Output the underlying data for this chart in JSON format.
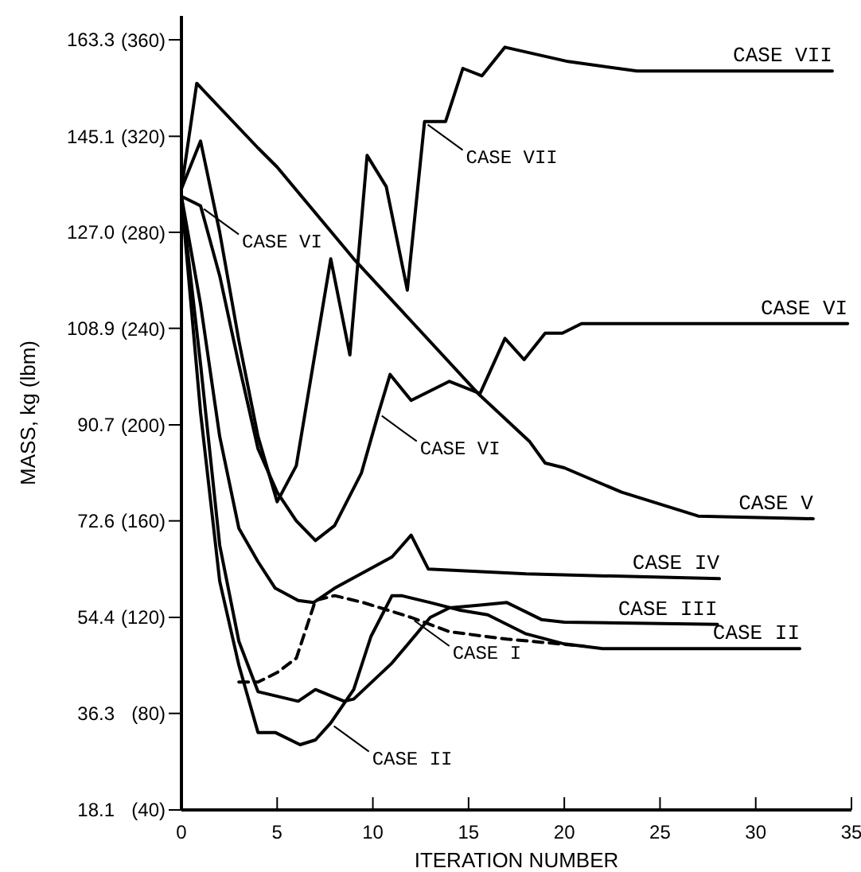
{
  "chart_data": {
    "type": "line",
    "xlabel": "ITERATION NUMBER",
    "ylabel": "MASS, kg (lbm)",
    "xlim": [
      0,
      35
    ],
    "ylim": [
      18.1,
      167.8
    ],
    "y2lim": [
      40,
      370
    ],
    "xticks": [
      0,
      5,
      10,
      15,
      20,
      25,
      30,
      35
    ],
    "yticks": [
      18.1,
      36.3,
      54.4,
      72.6,
      90.7,
      108.9,
      {
        "value": 127,
        "label": "127.0"
      },
      145.1,
      163.3
    ],
    "y2ticks": [
      {
        "value": 40,
        "label": "(40)"
      },
      {
        "value": 80,
        "label": "(80)"
      },
      {
        "value": 120,
        "label": "(120)"
      },
      {
        "value": 160,
        "label": "(160)"
      },
      {
        "value": 200,
        "label": "(200)"
      },
      {
        "value": 240,
        "label": "(240)"
      },
      {
        "value": 280,
        "label": "(280)"
      },
      {
        "value": 320,
        "label": "(320)"
      },
      {
        "value": 360,
        "label": "(360)"
      }
    ],
    "grid": false,
    "series": [
      {
        "color": "#000000",
        "x": [
          0,
          0.8,
          4,
          5,
          9,
          15.5,
          18.2,
          19,
          20,
          23,
          27,
          33
        ],
        "values": [
          135.2,
          155.1,
          142.9,
          139.3,
          122,
          96.6,
          87.5,
          83.5,
          82.6,
          78,
          73.5,
          73
        ]
      },
      {
        "color": "#000000",
        "x": [
          0,
          1,
          2,
          3,
          4,
          5,
          6,
          7.8,
          8.8,
          9.7,
          10.7,
          11.8,
          12.7,
          13.8,
          14.7,
          15.7,
          16.9,
          20.2,
          23.8,
          34
        ],
        "values": [
          135.2,
          144.2,
          127,
          106.6,
          88.5,
          76.2,
          83,
          122,
          103.9,
          141.5,
          135.6,
          116.1,
          147.9,
          147.9,
          157.9,
          156.5,
          161.9,
          159.2,
          157.4,
          157.4
        ]
      },
      {
        "color": "#000000",
        "x": [
          0,
          1,
          2,
          3,
          4,
          5,
          6,
          7,
          8,
          9.4,
          10.3,
          10.9,
          12,
          14,
          15.6,
          16.9,
          17.9,
          19,
          19.9,
          20.9,
          34.8
        ],
        "values": [
          133.8,
          132,
          118.8,
          102.1,
          86.2,
          78,
          72.6,
          68.9,
          71.7,
          81.6,
          93,
          100.2,
          95.3,
          98.9,
          96.6,
          107,
          103,
          108,
          108,
          109.8,
          109.8
        ]
      },
      {
        "color": "#000000",
        "x": [
          0,
          1,
          2,
          3,
          4,
          4.9,
          6.1,
          6.9,
          8,
          11,
          12,
          12.9,
          18,
          28.1
        ],
        "values": [
          133.8,
          113.4,
          88.5,
          71.2,
          64.9,
          59.9,
          57.6,
          57.2,
          59.9,
          65.8,
          69.9,
          63.5,
          62.6,
          61.7
        ]
      },
      {
        "color": "#000000",
        "x": [
          0,
          1,
          2,
          3,
          4,
          6.1,
          7,
          8.5,
          9,
          11,
          13,
          14,
          15.5,
          17,
          18.8,
          20,
          28
        ],
        "values": [
          133.8,
          102.1,
          68,
          49.9,
          40.4,
          38.6,
          40.8,
          38.6,
          39,
          45.8,
          54.4,
          56.2,
          56.7,
          57.2,
          54,
          53.5,
          53.1
        ]
      },
      {
        "color": "#000000",
        "x": [
          0,
          1,
          2,
          3,
          4,
          4.9,
          6.2,
          7,
          7.8,
          9,
          9.9,
          11,
          11.5,
          13,
          14.5,
          16,
          17,
          18,
          20,
          22,
          32.3
        ],
        "values": [
          133.8,
          93,
          61.2,
          45.4,
          32.7,
          32.7,
          30.4,
          31.3,
          34.5,
          40.8,
          50.8,
          58.5,
          58.5,
          57.2,
          55.8,
          54.9,
          53.1,
          51.3,
          49.4,
          48.5,
          48.5
        ]
      },
      {
        "color": "#000000",
        "line_style": "dashed",
        "x": [
          3,
          4,
          5,
          6,
          7,
          8,
          9.5,
          12,
          14,
          17,
          21
        ],
        "values": [
          42.2,
          42.2,
          44,
          46.7,
          57.6,
          58.5,
          57.2,
          54.4,
          51.7,
          50.3,
          49
        ]
      }
    ],
    "annotations": [
      {
        "text": "CASE VII",
        "x": 34,
        "y": 157.4
      },
      {
        "text": "CASE VI",
        "x": 34.8,
        "y": 109.8
      },
      {
        "text": "CASE V",
        "x": 33,
        "y": 73
      },
      {
        "text": "CASE IV",
        "x": 28.1,
        "y": 61.7
      },
      {
        "text": "CASE III",
        "x": 28,
        "y": 53.1
      },
      {
        "text": "CASE II",
        "x": 32.3,
        "y": 48.5
      },
      {
        "text": "CASE I",
        "x": 12,
        "y": 54.4
      },
      {
        "text": "CASE II",
        "x": 7.8,
        "y": 34.5
      },
      {
        "text": "CASE VI",
        "x": 10.3,
        "y": 93
      },
      {
        "text": "CASE VI",
        "x": 1,
        "y": 132
      },
      {
        "text": "CASE VII",
        "x": 12.7,
        "y": 147.9
      }
    ]
  }
}
